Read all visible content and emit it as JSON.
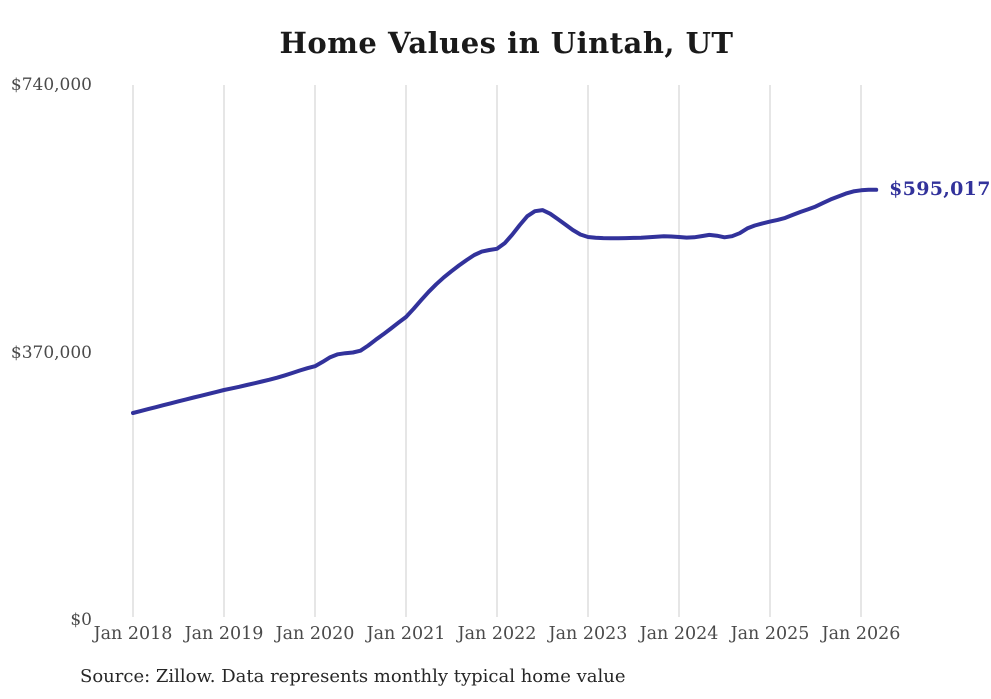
{
  "chart_data": {
    "type": "line",
    "title": "Home Values in Uintah, UT",
    "series_name": "Monthly typical home value",
    "unit": "USD",
    "start_month": "2018-01",
    "end_month": "2026-03",
    "values": [
      286300,
      289000,
      291700,
      294400,
      297100,
      299800,
      302500,
      305100,
      307700,
      310300,
      312900,
      315500,
      318100,
      320300,
      322600,
      325000,
      327400,
      329900,
      332400,
      335200,
      338300,
      341700,
      345100,
      348300,
      351000,
      357000,
      363500,
      367500,
      369000,
      370000,
      372500,
      379500,
      387500,
      395200,
      403000,
      411200,
      419100,
      430500,
      442500,
      454100,
      464500,
      474000,
      482500,
      490500,
      498000,
      504900,
      509500,
      511800,
      513500,
      521000,
      533000,
      546400,
      558500,
      565500,
      567000,
      562000,
      554600,
      547000,
      539400,
      533200,
      529700,
      528800,
      528200,
      527900,
      528000,
      528200,
      528500,
      528800,
      529300,
      530000,
      530700,
      530400,
      529800,
      528900,
      529300,
      531000,
      532600,
      531600,
      529400,
      530800,
      535000,
      541600,
      545700,
      548500,
      551000,
      553400,
      556200,
      560300,
      564400,
      568000,
      571800,
      576900,
      581700,
      585800,
      589800,
      592800,
      594300,
      595200,
      595017
    ],
    "x_ticks": [
      {
        "label": "Jan 2018",
        "month_index": 0
      },
      {
        "label": "Jan 2019",
        "month_index": 12
      },
      {
        "label": "Jan 2020",
        "month_index": 24
      },
      {
        "label": "Jan 2021",
        "month_index": 36
      },
      {
        "label": "Jan 2022",
        "month_index": 48
      },
      {
        "label": "Jan 2023",
        "month_index": 60
      },
      {
        "label": "Jan 2024",
        "month_index": 72
      },
      {
        "label": "Jan 2025",
        "month_index": 84
      },
      {
        "label": "Jan 2026",
        "month_index": 96
      }
    ],
    "y_ticks": [
      {
        "label": "$740,000",
        "value": 740000
      },
      {
        "label": "$370,000",
        "value": 370000
      },
      {
        "label": "$0",
        "value": 0
      }
    ],
    "ylim": [
      0,
      740000
    ],
    "grid": "vertical-only",
    "legend": "none",
    "end_label": "$595,017",
    "final_value": 595017
  },
  "source_note": "Source: Zillow. Data represents monthly typical home value",
  "colors": {
    "line": "#32329B",
    "grid": "#cccccc",
    "title": "#1a1a1a",
    "axis_label": "#4a4a4a",
    "value_label": "#32329B",
    "source": "#262626",
    "background": "#ffffff"
  }
}
